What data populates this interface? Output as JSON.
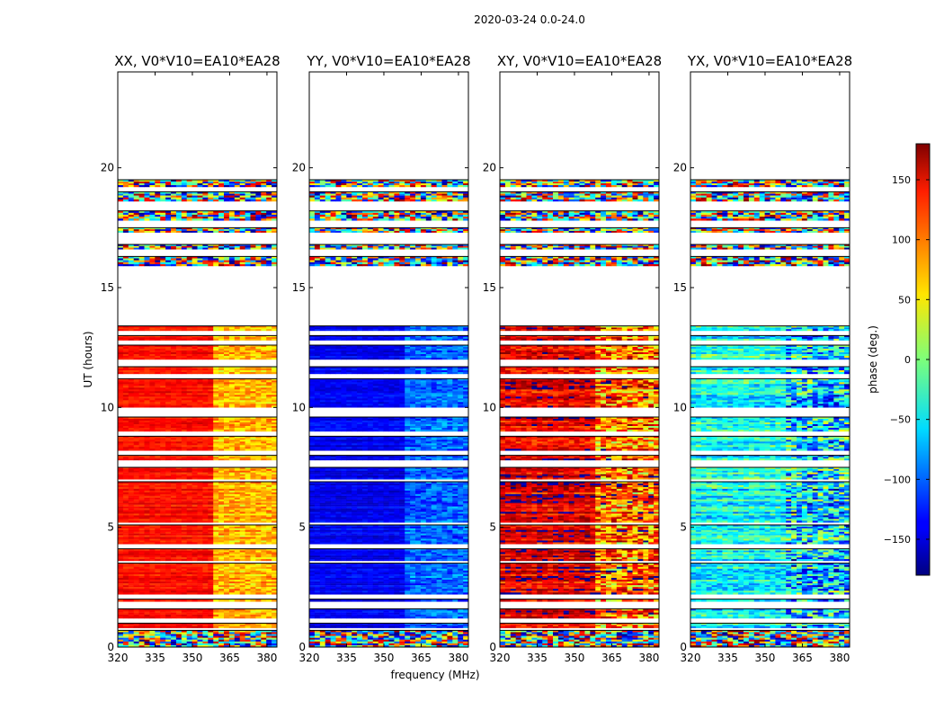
{
  "chart_data": {
    "type": "heatmap",
    "suptitle": "2020-03-24 0.0-24.0",
    "xlabel": "frequency (MHz)",
    "ylabel": "UT (hours)",
    "xlim": [
      320,
      384
    ],
    "ylim": [
      0,
      24
    ],
    "x_ticks": [
      320,
      335,
      350,
      365,
      380
    ],
    "y_ticks": [
      0,
      5,
      10,
      15,
      20
    ],
    "colorbar": {
      "label": "phase (deg.)",
      "range": [
        -180,
        180
      ],
      "ticks": [
        -150,
        -100,
        -50,
        0,
        50,
        100,
        150
      ],
      "tick_labels": [
        "−150",
        "−100",
        "−50",
        "0",
        "50",
        "100",
        "150"
      ],
      "colormap": "jet"
    },
    "band_segments_hours": [
      [
        0.0,
        0.7
      ],
      [
        0.8,
        1.0
      ],
      [
        1.2,
        1.6
      ],
      [
        1.9,
        2.0
      ],
      [
        2.2,
        3.5
      ],
      [
        3.6,
        4.1
      ],
      [
        4.3,
        5.1
      ],
      [
        5.2,
        6.9
      ],
      [
        7.0,
        7.5
      ],
      [
        7.8,
        8.0
      ],
      [
        8.2,
        8.8
      ],
      [
        9.0,
        9.6
      ],
      [
        10.0,
        11.2
      ],
      [
        11.4,
        11.7
      ],
      [
        12.0,
        12.6
      ],
      [
        12.8,
        13.0
      ],
      [
        13.2,
        13.4
      ],
      [
        15.9,
        16.3
      ],
      [
        16.6,
        16.8
      ],
      [
        17.3,
        17.5
      ],
      [
        17.8,
        18.2
      ],
      [
        18.6,
        19.0
      ],
      [
        19.2,
        19.5
      ]
    ],
    "panels": [
      {
        "title": "XX, V0*V10=EA10*EA28",
        "low_freq_phase_deg": 130,
        "high_freq_phase_deg": 70,
        "spread_deg": 25
      },
      {
        "title": "YY, V0*V10=EA10*EA28",
        "low_freq_phase_deg": -140,
        "high_freq_phase_deg": -100,
        "spread_deg": 25
      },
      {
        "title": "XY, V0*V10=EA10*EA28",
        "low_freq_phase_deg": 150,
        "high_freq_phase_deg": 100,
        "spread_deg": 60
      },
      {
        "title": "YX, V0*V10=EA10*EA28",
        "low_freq_phase_deg": -40,
        "high_freq_phase_deg": -60,
        "spread_deg": 70
      }
    ]
  }
}
